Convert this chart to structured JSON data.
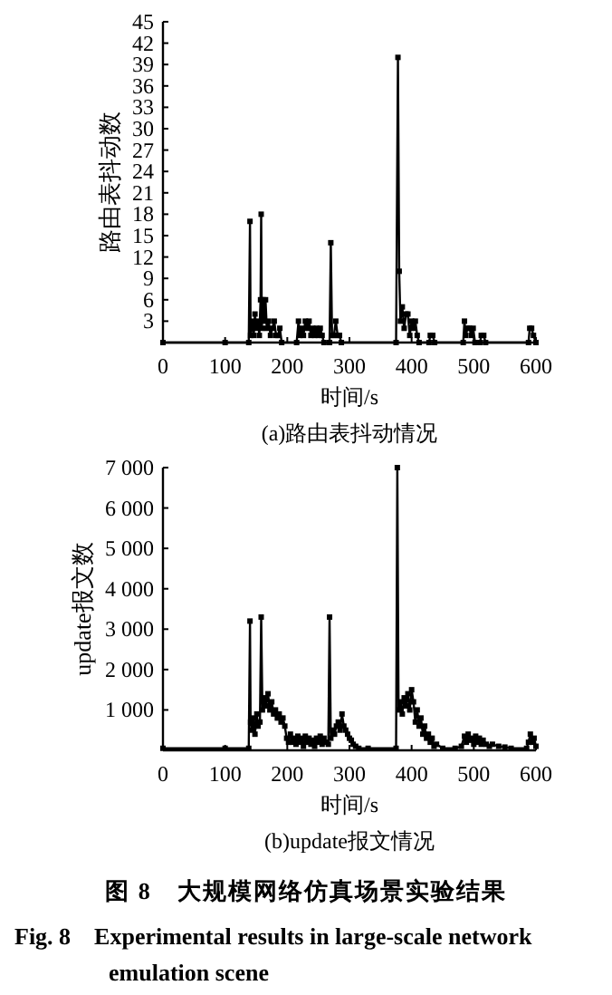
{
  "chart_data": [
    {
      "type": "line",
      "title": "(a)路由表抖动情况",
      "xlabel": "时间/s",
      "ylabel": "路由表抖动数",
      "marker": "square",
      "line_style": "solid",
      "xlim": [
        0,
        600
      ],
      "xticks": [
        0,
        100,
        200,
        300,
        400,
        500,
        600
      ],
      "ylim": [
        0,
        45
      ],
      "yticks": [
        3,
        6,
        9,
        12,
        15,
        18,
        21,
        24,
        27,
        30,
        33,
        36,
        39,
        42,
        45
      ],
      "series": [
        {
          "color": "#000000",
          "x": [
            0,
            100,
            138,
            140,
            141,
            143,
            146,
            148,
            150,
            153,
            155,
            157,
            158,
            159,
            161,
            163,
            165,
            167,
            170,
            173,
            176,
            179,
            182,
            185,
            188,
            191,
            215,
            218,
            220,
            223,
            226,
            229,
            232,
            235,
            238,
            241,
            244,
            247,
            250,
            253,
            256,
            259,
            268,
            270,
            272,
            275,
            278,
            281,
            284,
            287,
            375,
            378,
            380,
            382,
            385,
            388,
            391,
            394,
            397,
            400,
            403,
            406,
            409,
            412,
            428,
            430,
            434,
            437,
            483,
            485,
            487,
            490,
            493,
            496,
            499,
            502,
            510,
            512,
            516,
            519,
            588,
            590,
            593,
            596,
            600
          ],
          "values": [
            0,
            0,
            0,
            17,
            1,
            3,
            1,
            4,
            2,
            3,
            1,
            6,
            18,
            2,
            6,
            3,
            6,
            2,
            3,
            1,
            2,
            3,
            1,
            1,
            2,
            0,
            0,
            3,
            1,
            2,
            1,
            3,
            2,
            3,
            1,
            2,
            1,
            2,
            1,
            2,
            1,
            0,
            0,
            14,
            1,
            1,
            3,
            1,
            1,
            0,
            0,
            40,
            10,
            3,
            5,
            2,
            4,
            4,
            1,
            3,
            2,
            3,
            1,
            0,
            0,
            1,
            1,
            0,
            0,
            3,
            1,
            2,
            2,
            1,
            2,
            0,
            0,
            1,
            1,
            0,
            0,
            2,
            2,
            1,
            0
          ]
        }
      ]
    },
    {
      "type": "line",
      "title": "(b)update报文情况",
      "xlabel": "时间/s",
      "ylabel": "update报文数",
      "marker": "square",
      "line_style": "solid",
      "xlim": [
        0,
        600
      ],
      "xticks": [
        0,
        100,
        200,
        300,
        400,
        500,
        600
      ],
      "ylim": [
        0,
        7000
      ],
      "yticks": [
        {
          "value": 1000,
          "label": "1 000"
        },
        {
          "value": 2000,
          "label": "2 000"
        },
        {
          "value": 3000,
          "label": "3 000"
        },
        {
          "value": 4000,
          "label": "4 000"
        },
        {
          "value": 5000,
          "label": "5 000"
        },
        {
          "value": 6000,
          "label": "6 000"
        },
        {
          "value": 7000,
          "label": "7 000"
        }
      ],
      "annotations": [
        "图 8　大规模网络仿真场景实验结果",
        "Fig. 8　Experimental results in large-scale network emulation scene"
      ],
      "series": [
        {
          "color": "#000000",
          "x": [
            0,
            100,
            138,
            140,
            141,
            143,
            146,
            148,
            151,
            153,
            156,
            158,
            160,
            163,
            166,
            169,
            172,
            175,
            178,
            181,
            184,
            187,
            190,
            193,
            196,
            199,
            202,
            205,
            208,
            211,
            214,
            217,
            220,
            223,
            226,
            229,
            232,
            235,
            238,
            241,
            244,
            247,
            250,
            253,
            256,
            259,
            262,
            266,
            268,
            270,
            273,
            276,
            279,
            282,
            285,
            288,
            291,
            294,
            297,
            300,
            303,
            306,
            310,
            315,
            330,
            375,
            377,
            379,
            382,
            385,
            388,
            391,
            394,
            397,
            400,
            403,
            406,
            409,
            412,
            415,
            418,
            421,
            424,
            427,
            430,
            433,
            436,
            440,
            450,
            470,
            480,
            485,
            488,
            491,
            494,
            497,
            500,
            503,
            506,
            509,
            512,
            515,
            520,
            525,
            530,
            540,
            550,
            560,
            585,
            588,
            591,
            594,
            597,
            600
          ],
          "values": [
            50,
            50,
            50,
            3200,
            700,
            500,
            800,
            400,
            900,
            600,
            700,
            3300,
            1000,
            1300,
            1100,
            1400,
            1000,
            1200,
            900,
            1000,
            800,
            900,
            700,
            800,
            600,
            300,
            200,
            400,
            200,
            300,
            150,
            350,
            200,
            300,
            100,
            350,
            200,
            300,
            150,
            250,
            100,
            300,
            200,
            350,
            150,
            300,
            200,
            150,
            3300,
            300,
            500,
            400,
            600,
            700,
            500,
            900,
            600,
            500,
            400,
            300,
            250,
            150,
            100,
            50,
            50,
            50,
            7000,
            1000,
            1200,
            900,
            1300,
            1100,
            1400,
            1000,
            1500,
            1200,
            700,
            1000,
            600,
            800,
            400,
            600,
            300,
            400,
            200,
            300,
            100,
            150,
            50,
            50,
            100,
            350,
            200,
            400,
            250,
            300,
            150,
            350,
            200,
            300,
            150,
            250,
            150,
            100,
            150,
            100,
            80,
            50,
            50,
            200,
            400,
            200,
            300,
            100
          ]
        }
      ]
    }
  ]
}
